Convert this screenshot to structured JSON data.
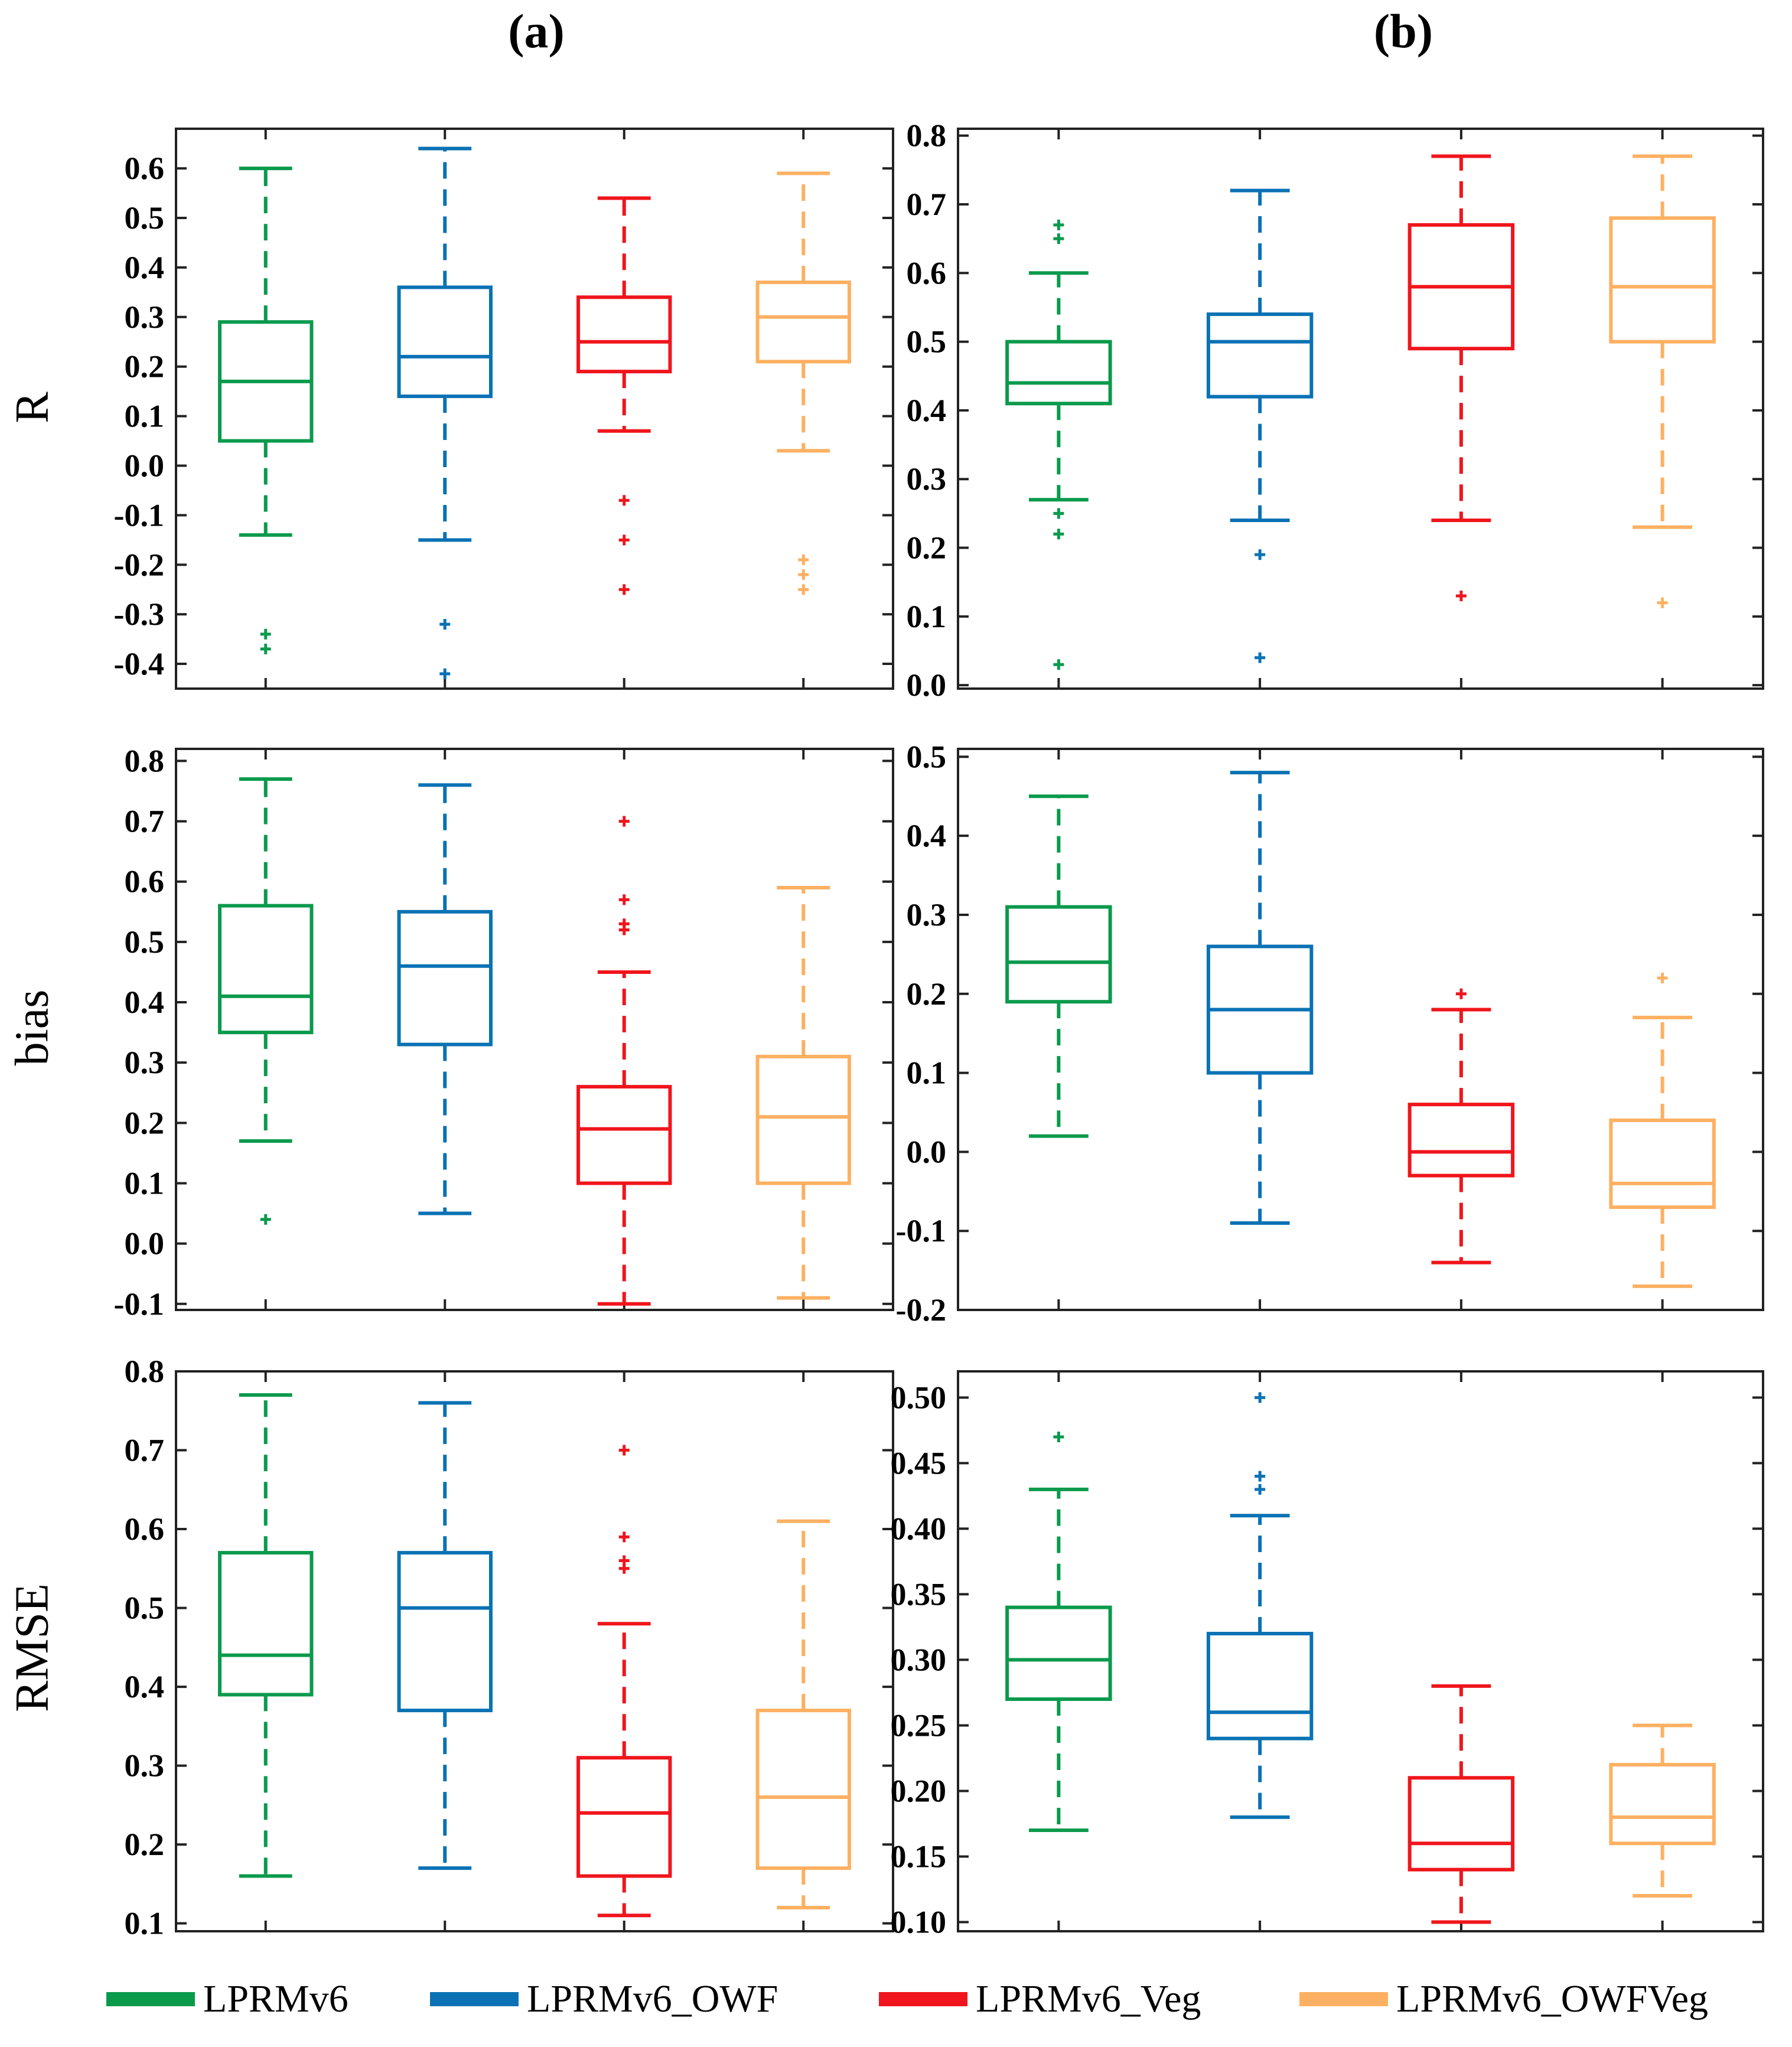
{
  "panel_labels": [
    "(a)",
    "(b)"
  ],
  "row_labels": [
    "R",
    "bias",
    "RMSE"
  ],
  "series": [
    {
      "name": "LPRMv6",
      "color": "#0a9a4c"
    },
    {
      "name": "LPRMv6_OWF",
      "color": "#0a72b4"
    },
    {
      "name": "LPRMv6_Veg",
      "color": "#f0151c"
    },
    {
      "name": "LPRMv6_OWFVeg",
      "color": "#fdb062"
    }
  ],
  "chart_data": [
    {
      "type": "box",
      "panel": "(a)",
      "ylabel": "R",
      "ylim": [
        -0.45,
        0.68
      ],
      "yticks": [
        -0.4,
        -0.3,
        -0.2,
        -0.1,
        0.0,
        0.1,
        0.2,
        0.3,
        0.4,
        0.5,
        0.6
      ],
      "ytick_labels": [
        "-0.4",
        "-0.3",
        "-0.2",
        "-0.1",
        "0.0",
        "0.1",
        "0.2",
        "0.3",
        "0.4",
        "0.5",
        "0.6"
      ],
      "boxes": [
        {
          "series": "LPRMv6",
          "whisker_low": -0.14,
          "q1": 0.05,
          "median": 0.17,
          "q3": 0.29,
          "whisker_high": 0.6,
          "outliers": [
            -0.34,
            -0.37
          ]
        },
        {
          "series": "LPRMv6_OWF",
          "whisker_low": -0.15,
          "q1": 0.14,
          "median": 0.22,
          "q3": 0.36,
          "whisker_high": 0.64,
          "outliers": [
            -0.32,
            -0.42
          ]
        },
        {
          "series": "LPRMv6_Veg",
          "whisker_low": 0.07,
          "q1": 0.19,
          "median": 0.25,
          "q3": 0.34,
          "whisker_high": 0.54,
          "outliers": [
            -0.07,
            -0.15,
            -0.25
          ]
        },
        {
          "series": "LPRMv6_OWFVeg",
          "whisker_low": 0.03,
          "q1": 0.21,
          "median": 0.3,
          "q3": 0.37,
          "whisker_high": 0.59,
          "outliers": [
            -0.19,
            -0.22,
            -0.25
          ]
        }
      ]
    },
    {
      "type": "box",
      "panel": "(b)",
      "ylabel": "",
      "ylim": [
        -0.005,
        0.81
      ],
      "yticks": [
        0.0,
        0.1,
        0.2,
        0.3,
        0.4,
        0.5,
        0.6,
        0.7,
        0.8
      ],
      "ytick_labels": [
        "0.0",
        "0.1",
        "0.2",
        "0.3",
        "0.4",
        "0.5",
        "0.6",
        "0.7",
        "0.8"
      ],
      "boxes": [
        {
          "series": "LPRMv6",
          "whisker_low": 0.27,
          "q1": 0.41,
          "median": 0.44,
          "q3": 0.5,
          "whisker_high": 0.6,
          "outliers": [
            0.67,
            0.65,
            0.25,
            0.22,
            0.03
          ]
        },
        {
          "series": "LPRMv6_OWF",
          "whisker_low": 0.24,
          "q1": 0.42,
          "median": 0.5,
          "q3": 0.54,
          "whisker_high": 0.72,
          "outliers": [
            0.19,
            0.04
          ]
        },
        {
          "series": "LPRMv6_Veg",
          "whisker_low": 0.24,
          "q1": 0.49,
          "median": 0.58,
          "q3": 0.67,
          "whisker_high": 0.77,
          "outliers": [
            0.13
          ]
        },
        {
          "series": "LPRMv6_OWFVeg",
          "whisker_low": 0.23,
          "q1": 0.5,
          "median": 0.58,
          "q3": 0.68,
          "whisker_high": 0.77,
          "outliers": [
            0.12
          ]
        }
      ]
    },
    {
      "type": "box",
      "panel": "(a)",
      "ylabel": "bias",
      "ylim": [
        -0.11,
        0.82
      ],
      "yticks": [
        -0.1,
        0.0,
        0.1,
        0.2,
        0.3,
        0.4,
        0.5,
        0.6,
        0.7,
        0.8
      ],
      "ytick_labels": [
        "-0.1",
        "0.0",
        "0.1",
        "0.2",
        "0.3",
        "0.4",
        "0.5",
        "0.6",
        "0.7",
        "0.8"
      ],
      "boxes": [
        {
          "series": "LPRMv6",
          "whisker_low": 0.17,
          "q1": 0.35,
          "median": 0.41,
          "q3": 0.56,
          "whisker_high": 0.77,
          "outliers": [
            0.04
          ]
        },
        {
          "series": "LPRMv6_OWF",
          "whisker_low": 0.05,
          "q1": 0.33,
          "median": 0.46,
          "q3": 0.55,
          "whisker_high": 0.76,
          "outliers": []
        },
        {
          "series": "LPRMv6_Veg",
          "whisker_low": -0.1,
          "q1": 0.1,
          "median": 0.19,
          "q3": 0.26,
          "whisker_high": 0.45,
          "outliers": [
            0.7,
            0.57,
            0.53,
            0.52
          ]
        },
        {
          "series": "LPRMv6_OWFVeg",
          "whisker_low": -0.09,
          "q1": 0.1,
          "median": 0.21,
          "q3": 0.31,
          "whisker_high": 0.59,
          "outliers": []
        }
      ]
    },
    {
      "type": "box",
      "panel": "(b)",
      "ylabel": "",
      "ylim": [
        -0.2,
        0.51
      ],
      "yticks": [
        -0.2,
        -0.1,
        0.0,
        0.1,
        0.2,
        0.3,
        0.4,
        0.5
      ],
      "ytick_labels": [
        "-0.2",
        "-0.1",
        "0.0",
        "0.1",
        "0.2",
        "0.3",
        "0.4",
        "0.5"
      ],
      "boxes": [
        {
          "series": "LPRMv6",
          "whisker_low": 0.02,
          "q1": 0.19,
          "median": 0.24,
          "q3": 0.31,
          "whisker_high": 0.45,
          "outliers": []
        },
        {
          "series": "LPRMv6_OWF",
          "whisker_low": -0.09,
          "q1": 0.1,
          "median": 0.18,
          "q3": 0.26,
          "whisker_high": 0.48,
          "outliers": []
        },
        {
          "series": "LPRMv6_Veg",
          "whisker_low": -0.14,
          "q1": -0.03,
          "median": 0.0,
          "q3": 0.06,
          "whisker_high": 0.18,
          "outliers": [
            0.2
          ]
        },
        {
          "series": "LPRMv6_OWFVeg",
          "whisker_low": -0.17,
          "q1": -0.07,
          "median": -0.04,
          "q3": 0.04,
          "whisker_high": 0.17,
          "outliers": [
            0.22
          ]
        }
      ]
    },
    {
      "type": "box",
      "panel": "(a)",
      "ylabel": "RMSE",
      "ylim": [
        0.09,
        0.8
      ],
      "yticks": [
        0.1,
        0.2,
        0.3,
        0.4,
        0.5,
        0.6,
        0.7,
        0.8
      ],
      "ytick_labels": [
        "0.1",
        "0.2",
        "0.3",
        "0.4",
        "0.5",
        "0.6",
        "0.7",
        "0.8"
      ],
      "boxes": [
        {
          "series": "LPRMv6",
          "whisker_low": 0.16,
          "q1": 0.39,
          "median": 0.44,
          "q3": 0.57,
          "whisker_high": 0.77,
          "outliers": []
        },
        {
          "series": "LPRMv6_OWF",
          "whisker_low": 0.17,
          "q1": 0.37,
          "median": 0.5,
          "q3": 0.57,
          "whisker_high": 0.76,
          "outliers": []
        },
        {
          "series": "LPRMv6_Veg",
          "whisker_low": 0.11,
          "q1": 0.16,
          "median": 0.24,
          "q3": 0.31,
          "whisker_high": 0.48,
          "outliers": [
            0.7,
            0.59,
            0.56,
            0.55
          ]
        },
        {
          "series": "LPRMv6_OWFVeg",
          "whisker_low": 0.12,
          "q1": 0.17,
          "median": 0.26,
          "q3": 0.37,
          "whisker_high": 0.61,
          "outliers": []
        }
      ]
    },
    {
      "type": "box",
      "panel": "(b)",
      "ylabel": "",
      "ylim": [
        0.093,
        0.52
      ],
      "yticks": [
        0.1,
        0.15,
        0.2,
        0.25,
        0.3,
        0.35,
        0.4,
        0.45,
        0.5
      ],
      "ytick_labels": [
        "0.10",
        "0.15",
        "0.20",
        "0.25",
        "0.30",
        "0.35",
        "0.40",
        "0.45",
        "0.50"
      ],
      "boxes": [
        {
          "series": "LPRMv6",
          "whisker_low": 0.17,
          "q1": 0.27,
          "median": 0.3,
          "q3": 0.34,
          "whisker_high": 0.43,
          "outliers": [
            0.47
          ]
        },
        {
          "series": "LPRMv6_OWF",
          "whisker_low": 0.18,
          "q1": 0.24,
          "median": 0.26,
          "q3": 0.32,
          "whisker_high": 0.41,
          "outliers": [
            0.5,
            0.44,
            0.43
          ]
        },
        {
          "series": "LPRMv6_Veg",
          "whisker_low": 0.1,
          "q1": 0.14,
          "median": 0.16,
          "q3": 0.21,
          "whisker_high": 0.28,
          "outliers": []
        },
        {
          "series": "LPRMv6_OWFVeg",
          "whisker_low": 0.12,
          "q1": 0.16,
          "median": 0.18,
          "q3": 0.22,
          "whisker_high": 0.25,
          "outliers": []
        }
      ]
    }
  ]
}
